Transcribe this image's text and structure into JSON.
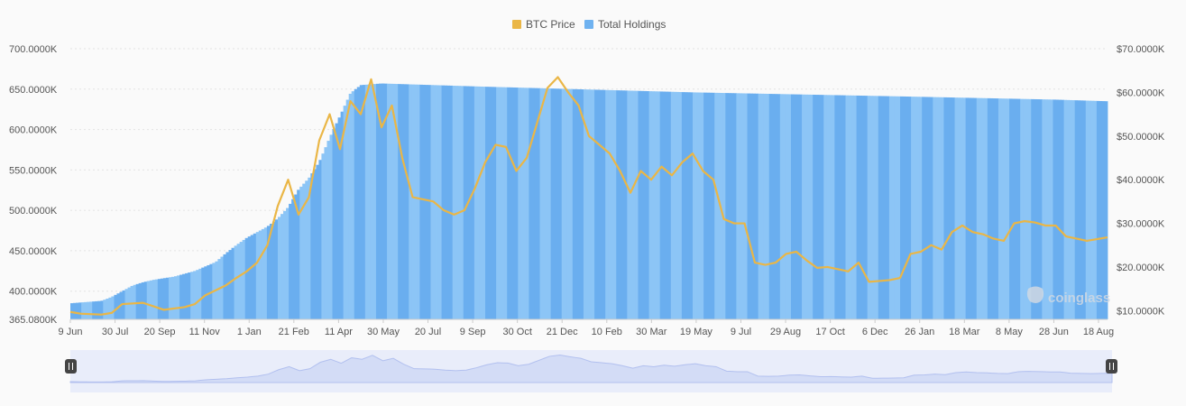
{
  "chart_data": {
    "type": "bar",
    "title": "",
    "xlabel": "",
    "ylabel": "",
    "legend_position": "top-center",
    "grid": true,
    "colors": {
      "holdings": "#6fb2f0",
      "price": "#eab646",
      "background": "#fafafa",
      "navigator": "#dfe7f8"
    },
    "x_ticks": [
      "9 Jun",
      "30 Jul",
      "20 Sep",
      "11 Nov",
      "1 Jan",
      "21 Feb",
      "11 Apr",
      "30 May",
      "20 Jul",
      "9 Sep",
      "30 Oct",
      "21 Dec",
      "10 Feb",
      "30 Mar",
      "19 May",
      "9 Jul",
      "29 Aug",
      "17 Oct",
      "6 Dec",
      "26 Jan",
      "18 Mar",
      "8 May",
      "28 Jun",
      "18 Aug"
    ],
    "y_left_ticks": [
      "700.0000K",
      "650.0000K",
      "600.0000K",
      "550.0000K",
      "500.0000K",
      "450.0000K",
      "400.0000K",
      "365.0800K"
    ],
    "y_left_range": [
      365080,
      700000
    ],
    "y_right_ticks": [
      "$70.0000K",
      "$60.0000K",
      "$50.0000K",
      "$40.0000K",
      "$30.0000K",
      "$20.0000K",
      "$10.0000K"
    ],
    "y_right_range": [
      8000,
      70000
    ],
    "series": [
      {
        "name": "Total Holdings",
        "axis": "left",
        "points": [
          [
            0,
            385000
          ],
          [
            3,
            388000
          ],
          [
            4,
            393000
          ],
          [
            5,
            400000
          ],
          [
            6,
            407000
          ],
          [
            7,
            411000
          ],
          [
            8,
            414000
          ],
          [
            10,
            418000
          ],
          [
            12,
            425000
          ],
          [
            14,
            436000
          ],
          [
            15,
            447000
          ],
          [
            16,
            457000
          ],
          [
            17,
            466000
          ],
          [
            19,
            480000
          ],
          [
            20,
            490000
          ],
          [
            21,
            504000
          ],
          [
            22,
            526000
          ],
          [
            23,
            540000
          ],
          [
            24,
            560000
          ],
          [
            25,
            590000
          ],
          [
            26,
            617000
          ],
          [
            27,
            645000
          ],
          [
            28,
            655000
          ],
          [
            30,
            657000
          ],
          [
            40,
            653000
          ],
          [
            60,
            646000
          ],
          [
            80,
            641000
          ],
          [
            95,
            637000
          ],
          [
            100,
            635000
          ]
        ]
      },
      {
        "name": "BTC Price",
        "axis": "right",
        "points": [
          [
            0,
            9700
          ],
          [
            1,
            9300
          ],
          [
            3,
            9100
          ],
          [
            4,
            9500
          ],
          [
            5,
            11500
          ],
          [
            7,
            11800
          ],
          [
            8,
            11000
          ],
          [
            9,
            10200
          ],
          [
            11,
            10800
          ],
          [
            12,
            11500
          ],
          [
            13,
            13500
          ],
          [
            15,
            15800
          ],
          [
            16,
            17500
          ],
          [
            17,
            19000
          ],
          [
            18,
            21000
          ],
          [
            19,
            25000
          ],
          [
            20,
            34000
          ],
          [
            21,
            40000
          ],
          [
            22,
            32000
          ],
          [
            23,
            36000
          ],
          [
            24,
            49000
          ],
          [
            25,
            55000
          ],
          [
            26,
            47000
          ],
          [
            27,
            58000
          ],
          [
            28,
            55000
          ],
          [
            29,
            63000
          ],
          [
            30,
            52000
          ],
          [
            31,
            57000
          ],
          [
            32,
            45000
          ],
          [
            33,
            36000
          ],
          [
            34,
            35500
          ],
          [
            35,
            35000
          ],
          [
            36,
            33000
          ],
          [
            37,
            32000
          ],
          [
            38,
            33000
          ],
          [
            39,
            38000
          ],
          [
            40,
            44000
          ],
          [
            41,
            48000
          ],
          [
            42,
            47500
          ],
          [
            43,
            42000
          ],
          [
            44,
            45000
          ],
          [
            45,
            53000
          ],
          [
            46,
            61000
          ],
          [
            47,
            63500
          ],
          [
            48,
            60000
          ],
          [
            49,
            57000
          ],
          [
            50,
            50000
          ],
          [
            51,
            48000
          ],
          [
            52,
            46000
          ],
          [
            53,
            42000
          ],
          [
            54,
            37000
          ],
          [
            55,
            42000
          ],
          [
            56,
            40000
          ],
          [
            57,
            43000
          ],
          [
            58,
            41000
          ],
          [
            59,
            44000
          ],
          [
            60,
            46000
          ],
          [
            61,
            42000
          ],
          [
            62,
            40000
          ],
          [
            63,
            31000
          ],
          [
            64,
            30000
          ],
          [
            65,
            30000
          ],
          [
            66,
            21000
          ],
          [
            67,
            20500
          ],
          [
            68,
            21000
          ],
          [
            69,
            23000
          ],
          [
            70,
            23500
          ],
          [
            71,
            21500
          ],
          [
            72,
            19800
          ],
          [
            73,
            20000
          ],
          [
            74,
            19500
          ],
          [
            75,
            19000
          ],
          [
            76,
            21000
          ],
          [
            77,
            16600
          ],
          [
            78,
            16800
          ],
          [
            79,
            17000
          ],
          [
            80,
            17500
          ],
          [
            81,
            23000
          ],
          [
            82,
            23500
          ],
          [
            83,
            25000
          ],
          [
            84,
            24000
          ],
          [
            85,
            28000
          ],
          [
            86,
            29500
          ],
          [
            87,
            28000
          ],
          [
            88,
            27500
          ],
          [
            89,
            26500
          ],
          [
            90,
            26000
          ],
          [
            91,
            30000
          ],
          [
            92,
            30500
          ],
          [
            93,
            30200
          ],
          [
            94,
            29500
          ],
          [
            95,
            29500
          ],
          [
            96,
            27000
          ],
          [
            97,
            26500
          ],
          [
            98,
            26000
          ],
          [
            100,
            26800
          ]
        ]
      }
    ]
  },
  "legend": {
    "btc_label": "BTC Price",
    "holdings_label": "Total Holdings"
  },
  "watermark": "coinglass",
  "navigator": {
    "handle_icon": "pause-handle-icon"
  }
}
